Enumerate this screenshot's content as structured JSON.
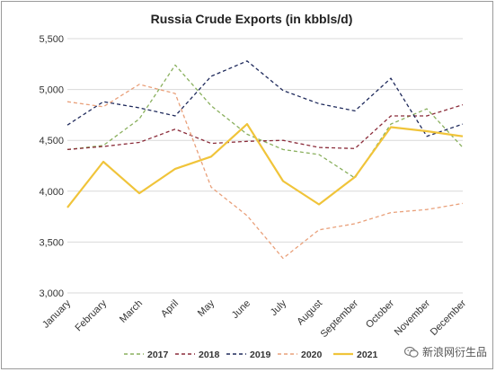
{
  "chart_data": {
    "type": "line",
    "title": "Russia Crude Exports (in kbbls/d)",
    "xlabel": "",
    "ylabel": "",
    "categories": [
      "January",
      "February",
      "March",
      "April",
      "May",
      "June",
      "July",
      "August",
      "September",
      "October",
      "November",
      "December"
    ],
    "ylim": [
      3000,
      5500
    ],
    "yticks": [
      3000,
      3500,
      4000,
      4500,
      5000,
      5500
    ],
    "ytick_labels": [
      "3,000",
      "3,500",
      "4,000",
      "4,500",
      "5,000",
      "5,500"
    ],
    "grid": "horizontal",
    "legend_position": "bottom",
    "series": [
      {
        "name": "2017",
        "color": "#8ab05e",
        "style": "dashed",
        "values": [
          4410,
          4450,
          4710,
          5240,
          4840,
          4560,
          4410,
          4360,
          4130,
          4660,
          4810,
          4430
        ]
      },
      {
        "name": "2018",
        "color": "#8b2c3a",
        "style": "dashed",
        "values": [
          4410,
          4440,
          4480,
          4610,
          4470,
          4490,
          4500,
          4430,
          4420,
          4740,
          4740,
          4850
        ]
      },
      {
        "name": "2019",
        "color": "#1f2a5c",
        "style": "dashed",
        "values": [
          4650,
          4880,
          4820,
          4740,
          5130,
          5280,
          4990,
          4860,
          4790,
          5110,
          4540,
          4660
        ]
      },
      {
        "name": "2020",
        "color": "#e9a07a",
        "style": "dashed",
        "values": [
          4880,
          4830,
          5050,
          4960,
          4040,
          3760,
          3340,
          3620,
          3680,
          3790,
          3820,
          3880
        ]
      },
      {
        "name": "2021",
        "color": "#f0c43a",
        "style": "solid",
        "values": [
          3840,
          4290,
          3980,
          4220,
          4340,
          4660,
          4100,
          3870,
          4140,
          4630,
          4590,
          4540
        ]
      }
    ]
  },
  "watermark": {
    "text": "新浪网衍生品",
    "icon": "wechat-icon"
  }
}
